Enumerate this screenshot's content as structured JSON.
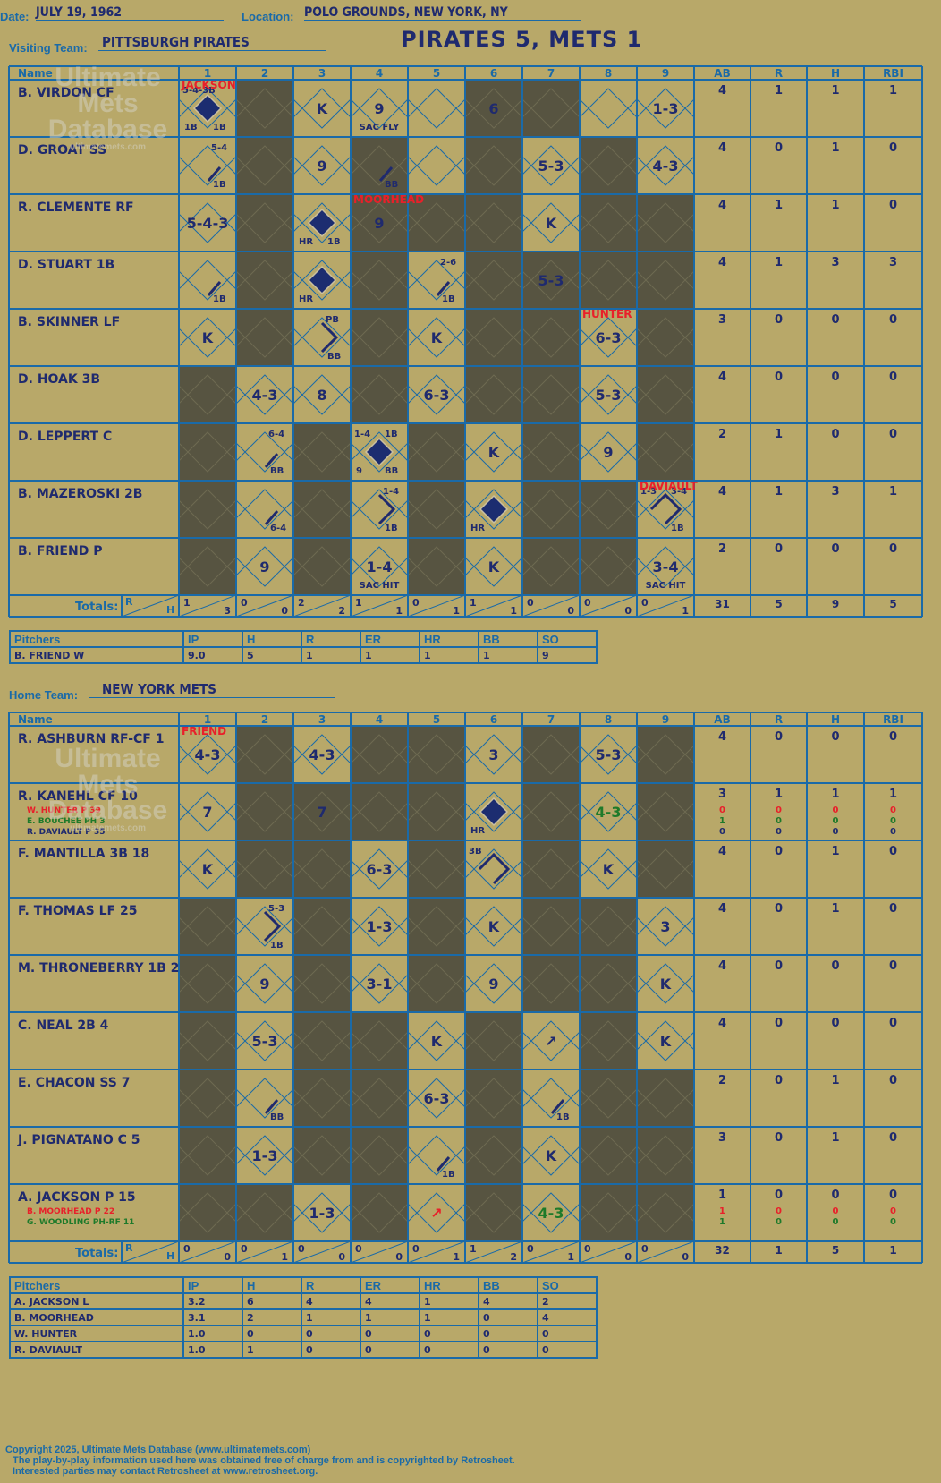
{
  "header": {
    "date_label": "Date:",
    "date": "JULY 19, 1962",
    "location_label": "Location:",
    "location": "POLO GROUNDS, NEW YORK, NY",
    "visiting_label": "Visiting Team:",
    "visiting_team": "PITTSBURGH PIRATES",
    "score_title": "PIRATES 5, METS 1",
    "home_label": "Home Team:",
    "home_team": "NEW YORK METS"
  },
  "watermark": {
    "line1": "Ultimate",
    "line2": "Mets",
    "line3": "Database",
    "url": "ultimatemets.com"
  },
  "columns": [
    "Name",
    "1",
    "2",
    "3",
    "4",
    "5",
    "6",
    "7",
    "8",
    "9",
    "AB",
    "R",
    "H",
    "RBI"
  ],
  "totals_label": "Totals:",
  "totals_r": "R",
  "totals_h": "H",
  "colors": {
    "background": "#b8a869",
    "grid": "#1a6aa8",
    "shade": "#575441",
    "ink": "#1f2a6e",
    "red": "#e8202a",
    "green": "#1e7a2a",
    "diamond": "#1c2d70"
  },
  "visitors": {
    "players": [
      {
        "name": "B. VIRDON CF",
        "stats": [
          "4",
          "1",
          "1",
          "1"
        ]
      },
      {
        "name": "D. GROAT SS",
        "stats": [
          "4",
          "0",
          "1",
          "0"
        ]
      },
      {
        "name": "R. CLEMENTE RF",
        "stats": [
          "4",
          "1",
          "1",
          "0"
        ]
      },
      {
        "name": "D. STUART 1B",
        "stats": [
          "4",
          "1",
          "3",
          "3"
        ]
      },
      {
        "name": "B. SKINNER LF",
        "stats": [
          "3",
          "0",
          "0",
          "0"
        ]
      },
      {
        "name": "D. HOAK 3B",
        "stats": [
          "4",
          "0",
          "0",
          "0"
        ]
      },
      {
        "name": "D. LEPPERT C",
        "stats": [
          "2",
          "1",
          "0",
          "0"
        ]
      },
      {
        "name": "B. MAZEROSKI 2B",
        "stats": [
          "4",
          "1",
          "3",
          "1"
        ]
      },
      {
        "name": "B. FRIEND P",
        "stats": [
          "2",
          "0",
          "0",
          "0"
        ]
      }
    ],
    "shaded": [
      [
        2,
        6,
        7
      ],
      [
        2,
        4,
        6,
        8
      ],
      [
        2,
        4,
        5,
        6,
        8,
        9
      ],
      [
        2,
        4,
        6,
        7,
        8,
        9
      ],
      [
        2,
        4,
        6,
        7,
        9
      ],
      [
        1,
        4,
        6,
        7,
        9
      ],
      [
        1,
        3,
        5,
        7,
        9
      ],
      [
        1,
        3,
        5,
        7,
        8
      ],
      [
        1,
        3,
        5,
        7,
        8
      ]
    ],
    "plays": [
      {
        "r": 0,
        "c": 1,
        "label": "5-4-3B",
        "pos": "tl",
        "color": "ink",
        "diamond": "scored",
        "bl": "1B",
        "br": "1B"
      },
      {
        "r": 0,
        "c": 3,
        "center": "K"
      },
      {
        "r": 0,
        "c": 4,
        "center": "9",
        "bottom": "SAC FLY"
      },
      {
        "r": 0,
        "c": 6,
        "center": "6"
      },
      {
        "r": 0,
        "c": 9,
        "center": "1-3"
      },
      {
        "r": 1,
        "c": 1,
        "label": "5-4",
        "pos": "tr",
        "path": "1b",
        "br": "1B"
      },
      {
        "r": 1,
        "c": 3,
        "center": "9"
      },
      {
        "r": 1,
        "c": 4,
        "path": "1b",
        "br": "BB"
      },
      {
        "r": 1,
        "c": 7,
        "center": "5-3"
      },
      {
        "r": 1,
        "c": 9,
        "center": "4-3"
      },
      {
        "r": 2,
        "c": 1,
        "center": "5-4-3"
      },
      {
        "r": 2,
        "c": 3,
        "diamond": "scored",
        "bl": "HR",
        "br": "1B"
      },
      {
        "r": 2,
        "c": 4,
        "center": "9"
      },
      {
        "r": 2,
        "c": 7,
        "center": "K"
      },
      {
        "r": 3,
        "c": 1,
        "path": "1b",
        "br": "1B"
      },
      {
        "r": 3,
        "c": 3,
        "diamond": "scored",
        "bl": "HR"
      },
      {
        "r": 3,
        "c": 5,
        "label": "2-6",
        "pos": "tr",
        "path": "1b",
        "br": "1B"
      },
      {
        "r": 3,
        "c": 7,
        "center": "5-3"
      },
      {
        "r": 4,
        "c": 1,
        "center": "K"
      },
      {
        "r": 4,
        "c": 3,
        "path": "2b",
        "label": "PB",
        "pos": "tr",
        "br": "BB"
      },
      {
        "r": 4,
        "c": 5,
        "center": "K"
      },
      {
        "r": 4,
        "c": 8,
        "center": "6-3"
      },
      {
        "r": 5,
        "c": 2,
        "center": "4-3"
      },
      {
        "r": 5,
        "c": 3,
        "center": "8"
      },
      {
        "r": 5,
        "c": 5,
        "center": "6-3"
      },
      {
        "r": 5,
        "c": 8,
        "center": "5-3"
      },
      {
        "r": 6,
        "c": 2,
        "label": "6-4",
        "pos": "tr",
        "path": "1b",
        "br": "BB"
      },
      {
        "r": 6,
        "c": 4,
        "label": "1-4",
        "pos": "tl",
        "label2": "1B",
        "diamond": "scored",
        "bl": "9",
        "br": "BB"
      },
      {
        "r": 6,
        "c": 6,
        "center": "K"
      },
      {
        "r": 6,
        "c": 8,
        "center": "9"
      },
      {
        "r": 7,
        "c": 2,
        "path": "1b",
        "br": "6-4"
      },
      {
        "r": 7,
        "c": 4,
        "label": "1-4",
        "pos": "tr",
        "path": "2b",
        "br": "1B"
      },
      {
        "r": 7,
        "c": 6,
        "diamond": "scored",
        "bl": "HR"
      },
      {
        "r": 7,
        "c": 9,
        "label": "1-3",
        "pos": "tl",
        "label2": "3-4",
        "path": "3b",
        "br": "1B"
      },
      {
        "r": 8,
        "c": 2,
        "center": "9"
      },
      {
        "r": 8,
        "c": 4,
        "center": "1-4",
        "bottom": "SAC HIT"
      },
      {
        "r": 8,
        "c": 6,
        "center": "K"
      },
      {
        "r": 8,
        "c": 9,
        "center": "3-4",
        "bottom": "SAC HIT"
      }
    ],
    "notes": [
      {
        "r": 0,
        "c": 1,
        "text": "JACKSON"
      },
      {
        "r": 2,
        "c": 4,
        "text": "MOORHEAD"
      },
      {
        "r": 4,
        "c": 8,
        "text": "HUNTER"
      },
      {
        "r": 7,
        "c": 9,
        "text": "DAVIAULT"
      }
    ],
    "inning_totals": [
      [
        "1",
        "3"
      ],
      [
        "0",
        "0"
      ],
      [
        "2",
        "2"
      ],
      [
        "1",
        "1"
      ],
      [
        "0",
        "1"
      ],
      [
        "1",
        "1"
      ],
      [
        "0",
        "0"
      ],
      [
        "0",
        "0"
      ],
      [
        "0",
        "1"
      ]
    ],
    "totals": [
      "31",
      "5",
      "9",
      "5"
    ]
  },
  "visitor_pitching": {
    "headers": [
      "Pitchers",
      "IP",
      "H",
      "R",
      "ER",
      "HR",
      "BB",
      "SO"
    ],
    "rows": [
      [
        "B. FRIEND  W",
        "9.0",
        "5",
        "1",
        "1",
        "1",
        "1",
        "9"
      ]
    ]
  },
  "home": {
    "players": [
      {
        "name": "R. ASHBURN RF-CF  1",
        "stats": [
          "4",
          "0",
          "0",
          "0"
        ]
      },
      {
        "name": "R. KANEHL CF  10",
        "stats": [
          "3",
          "1",
          "1",
          "1"
        ],
        "subs": [
          {
            "text": "W. HUNTER P  39",
            "color": "red",
            "stats": [
              "0",
              "0",
              "0",
              "0"
            ]
          },
          {
            "text": "E. BOUCHEE PH  3",
            "color": "green",
            "stats": [
              "1",
              "0",
              "0",
              "0"
            ]
          },
          {
            "text": "R. DAVIAULT P  35",
            "color": "ink",
            "stats": [
              "0",
              "0",
              "0",
              "0"
            ]
          }
        ]
      },
      {
        "name": "F. MANTILLA 3B  18",
        "stats": [
          "4",
          "0",
          "1",
          "0"
        ]
      },
      {
        "name": "F. THOMAS LF  25",
        "stats": [
          "4",
          "0",
          "1",
          "0"
        ]
      },
      {
        "name": "M. THRONEBERRY 1B  2",
        "stats": [
          "4",
          "0",
          "0",
          "0"
        ]
      },
      {
        "name": "C. NEAL 2B  4",
        "stats": [
          "4",
          "0",
          "0",
          "0"
        ]
      },
      {
        "name": "E. CHACON SS  7",
        "stats": [
          "2",
          "0",
          "1",
          "0"
        ]
      },
      {
        "name": "J. PIGNATANO C  5",
        "stats": [
          "3",
          "0",
          "1",
          "0"
        ]
      },
      {
        "name": "A. JACKSON P  15",
        "stats": [
          "1",
          "0",
          "0",
          "0"
        ],
        "subs": [
          {
            "text": "B. MOORHEAD P  22",
            "color": "red",
            "stats": [
              "1",
              "0",
              "0",
              "0"
            ]
          },
          {
            "text": "G. WOODLING PH-RF  11",
            "color": "green",
            "stats": [
              "1",
              "0",
              "0",
              "0"
            ]
          }
        ]
      }
    ],
    "shaded": [
      [
        2,
        4,
        5,
        7,
        9
      ],
      [
        2,
        3,
        4,
        5,
        7,
        9
      ],
      [
        2,
        3,
        5,
        7,
        9
      ],
      [
        1,
        3,
        5,
        7,
        8
      ],
      [
        1,
        3,
        5,
        7,
        8
      ],
      [
        1,
        3,
        4,
        6,
        8
      ],
      [
        1,
        3,
        4,
        6,
        8,
        9
      ],
      [
        1,
        3,
        4,
        6,
        8,
        9
      ],
      [
        1,
        2,
        4,
        6,
        8,
        9
      ]
    ],
    "plays": [
      {
        "r": 0,
        "c": 1,
        "center": "4-3"
      },
      {
        "r": 0,
        "c": 3,
        "center": "4-3"
      },
      {
        "r": 0,
        "c": 6,
        "center": "3"
      },
      {
        "r": 0,
        "c": 8,
        "center": "5-3"
      },
      {
        "r": 1,
        "c": 1,
        "center": "7"
      },
      {
        "r": 1,
        "c": 3,
        "center": "7"
      },
      {
        "r": 1,
        "c": 6,
        "diamond": "scored",
        "bl": "HR"
      },
      {
        "r": 1,
        "c": 8,
        "center": "4-3",
        "color": "green"
      },
      {
        "r": 2,
        "c": 1,
        "center": "K"
      },
      {
        "r": 2,
        "c": 4,
        "center": "6-3"
      },
      {
        "r": 2,
        "c": 6,
        "label": "3B",
        "pos": "tl",
        "path": "3b"
      },
      {
        "r": 2,
        "c": 8,
        "center": "K"
      },
      {
        "r": 3,
        "c": 2,
        "label": "5-3",
        "pos": "tr",
        "path": "2b",
        "br": "1B"
      },
      {
        "r": 3,
        "c": 4,
        "center": "1-3"
      },
      {
        "r": 3,
        "c": 6,
        "center": "K"
      },
      {
        "r": 3,
        "c": 9,
        "center": "3"
      },
      {
        "r": 4,
        "c": 2,
        "center": "9"
      },
      {
        "r": 4,
        "c": 4,
        "center": "3-1"
      },
      {
        "r": 4,
        "c": 6,
        "center": "9"
      },
      {
        "r": 4,
        "c": 9,
        "center": "K"
      },
      {
        "r": 5,
        "c": 2,
        "center": "5-3"
      },
      {
        "r": 5,
        "c": 5,
        "center": "K"
      },
      {
        "r": 5,
        "c": 7,
        "center": "↗"
      },
      {
        "r": 5,
        "c": 9,
        "center": "K"
      },
      {
        "r": 6,
        "c": 2,
        "path": "1b",
        "br": "BB"
      },
      {
        "r": 6,
        "c": 5,
        "center": "6-3"
      },
      {
        "r": 6,
        "c": 7,
        "path": "1b",
        "br": "1B"
      },
      {
        "r": 7,
        "c": 2,
        "center": "1-3"
      },
      {
        "r": 7,
        "c": 5,
        "path": "1b",
        "br": "1B"
      },
      {
        "r": 7,
        "c": 7,
        "center": "K"
      },
      {
        "r": 8,
        "c": 3,
        "center": "1-3"
      },
      {
        "r": 8,
        "c": 5,
        "center": "↗",
        "color": "red"
      },
      {
        "r": 8,
        "c": 7,
        "center": "4-3",
        "color": "green"
      }
    ],
    "notes": [
      {
        "r": 0,
        "c": 1,
        "text": "FRIEND"
      }
    ],
    "inning_totals": [
      [
        "0",
        "0"
      ],
      [
        "0",
        "1"
      ],
      [
        "0",
        "0"
      ],
      [
        "0",
        "0"
      ],
      [
        "0",
        "1"
      ],
      [
        "1",
        "2"
      ],
      [
        "0",
        "1"
      ],
      [
        "0",
        "0"
      ],
      [
        "0",
        "0"
      ]
    ],
    "totals": [
      "32",
      "1",
      "5",
      "1"
    ]
  },
  "home_pitching": {
    "headers": [
      "Pitchers",
      "IP",
      "H",
      "R",
      "ER",
      "HR",
      "BB",
      "SO"
    ],
    "rows": [
      [
        "A. JACKSON  L",
        "3.2",
        "6",
        "4",
        "4",
        "1",
        "4",
        "2"
      ],
      [
        "B. MOORHEAD",
        "3.1",
        "2",
        "1",
        "1",
        "1",
        "0",
        "4"
      ],
      [
        "W. HUNTER",
        "1.0",
        "0",
        "0",
        "0",
        "0",
        "0",
        "0"
      ],
      [
        "R. DAVIAULT",
        "1.0",
        "1",
        "0",
        "0",
        "0",
        "0",
        "0"
      ]
    ]
  },
  "footer": {
    "line1": "Copyright 2025, Ultimate Mets Database (www.ultimatemets.com)",
    "line2": "The play-by-play information used here was obtained free of charge from and is copyrighted by Retrosheet.",
    "line3": "Interested parties may contact Retrosheet at www.retrosheet.org."
  }
}
